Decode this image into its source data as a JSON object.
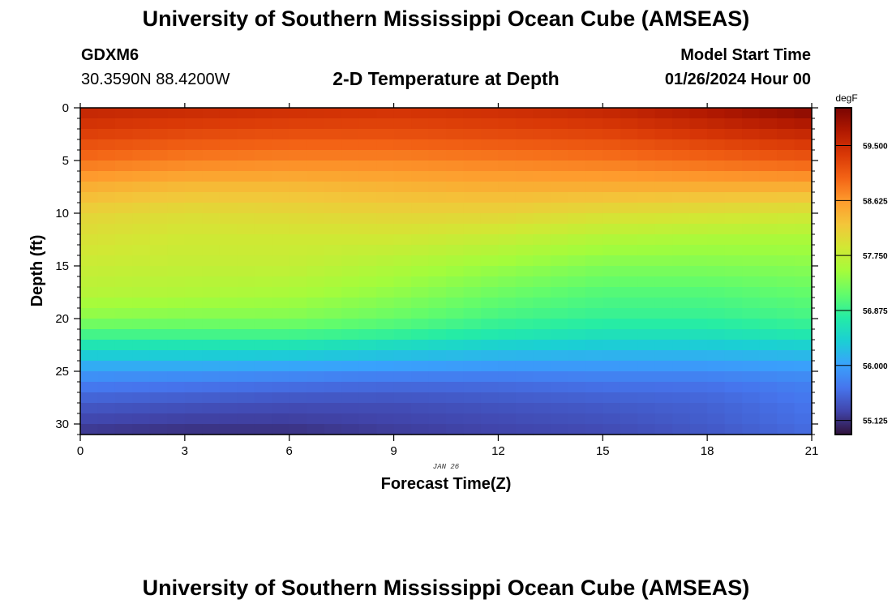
{
  "header": {
    "title": "University of Southern Mississippi Ocean Cube (AMSEAS)",
    "station_id": "GDXM6",
    "coordinates": "30.3590N  88.4200W",
    "plot_title": "2-D Temperature at Depth",
    "start_label": "Model Start Time",
    "start_value": "01/26/2024 Hour 00"
  },
  "footer": {
    "title": "University of Southern Mississippi Ocean Cube (AMSEAS)"
  },
  "chart_data": {
    "type": "heatmap",
    "title": "2-D Temperature at Depth",
    "xlabel": "Forecast Time(Z)",
    "ylabel": "Depth (ft)",
    "date_label": "JAN 26",
    "xlim": [
      0,
      21
    ],
    "ylim": [
      31,
      0
    ],
    "x_ticks": [
      "0",
      "3",
      "6",
      "9",
      "12",
      "15",
      "18",
      "21"
    ],
    "x_tick_values": [
      0,
      3,
      6,
      9,
      12,
      15,
      18,
      21
    ],
    "y_ticks": [
      "0",
      "5",
      "10",
      "15",
      "20",
      "25",
      "30"
    ],
    "y_tick_values": [
      0,
      5,
      10,
      15,
      20,
      25,
      30
    ],
    "colorbar": {
      "unit": "degF",
      "min": 54.9,
      "max": 60.1,
      "ticks": [
        "59.500",
        "58.625",
        "57.750",
        "56.875",
        "56.000",
        "55.125"
      ],
      "tick_values": [
        59.5,
        58.625,
        57.75,
        56.875,
        56.0,
        55.125
      ],
      "colors": [
        "#30123b",
        "#4145ab",
        "#4675ed",
        "#39a2fc",
        "#1bcfd4",
        "#24eca6",
        "#61fc6c",
        "#a4fc3b",
        "#d1e834",
        "#f3c63a",
        "#fe9b2d",
        "#f36315",
        "#d93806",
        "#b11901",
        "#7a0402"
      ]
    },
    "x_hours": [
      0,
      3,
      6,
      9,
      12,
      15,
      18,
      21
    ],
    "depth_ft": [
      0,
      2.5,
      5,
      7.5,
      10,
      12.5,
      15,
      17.5,
      20,
      21.5,
      23,
      24.5,
      26,
      28,
      30,
      31
    ],
    "temperature_degF": [
      [
        59.6,
        59.55,
        59.5,
        59.45,
        59.5,
        59.6,
        59.8,
        60.05
      ],
      [
        59.3,
        59.2,
        59.15,
        59.15,
        59.2,
        59.25,
        59.4,
        59.55
      ],
      [
        58.9,
        58.8,
        58.75,
        58.75,
        58.8,
        58.85,
        58.95,
        59.05
      ],
      [
        58.45,
        58.35,
        58.35,
        58.4,
        58.45,
        58.45,
        58.45,
        58.45
      ],
      [
        58.1,
        58.0,
        58.05,
        58.1,
        58.1,
        58.0,
        57.95,
        57.9
      ],
      [
        57.95,
        57.85,
        57.85,
        57.85,
        57.75,
        57.6,
        57.55,
        57.55
      ],
      [
        57.8,
        57.75,
        57.75,
        57.6,
        57.45,
        57.3,
        57.3,
        57.35
      ],
      [
        57.65,
        57.6,
        57.55,
        57.4,
        57.2,
        57.05,
        57.05,
        57.15
      ],
      [
        57.35,
        57.3,
        57.3,
        57.15,
        56.95,
        56.85,
        56.85,
        56.95
      ],
      [
        56.95,
        56.95,
        56.95,
        56.85,
        56.7,
        56.6,
        56.6,
        56.7
      ],
      [
        56.5,
        56.5,
        56.5,
        56.4,
        56.3,
        56.25,
        56.25,
        56.3
      ],
      [
        56.1,
        56.1,
        56.05,
        56.0,
        55.95,
        55.95,
        55.95,
        56.0
      ],
      [
        55.75,
        55.7,
        55.65,
        55.6,
        55.6,
        55.65,
        55.65,
        55.75
      ],
      [
        55.45,
        55.4,
        55.35,
        55.35,
        55.4,
        55.45,
        55.5,
        55.65
      ],
      [
        55.25,
        55.2,
        55.2,
        55.25,
        55.3,
        55.35,
        55.45,
        55.6
      ],
      [
        55.15,
        55.1,
        55.1,
        55.2,
        55.25,
        55.3,
        55.4,
        55.55
      ]
    ]
  }
}
